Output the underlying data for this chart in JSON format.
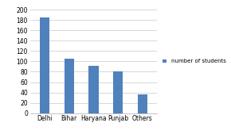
{
  "categories": [
    "Delhi",
    "Bihar",
    "Haryana",
    "Punjab",
    "Others"
  ],
  "values": [
    185,
    105,
    92,
    80,
    37
  ],
  "bar_color": "#4f81bd",
  "ylim": [
    0,
    200
  ],
  "yticks": [
    0,
    20,
    40,
    60,
    80,
    100,
    120,
    140,
    160,
    180,
    200
  ],
  "legend_label": "number of students",
  "background_color": "#ffffff",
  "grid_color": "#c8c8c8",
  "bar_width": 0.4,
  "figsize": [
    2.9,
    1.74
  ],
  "dpi": 100
}
